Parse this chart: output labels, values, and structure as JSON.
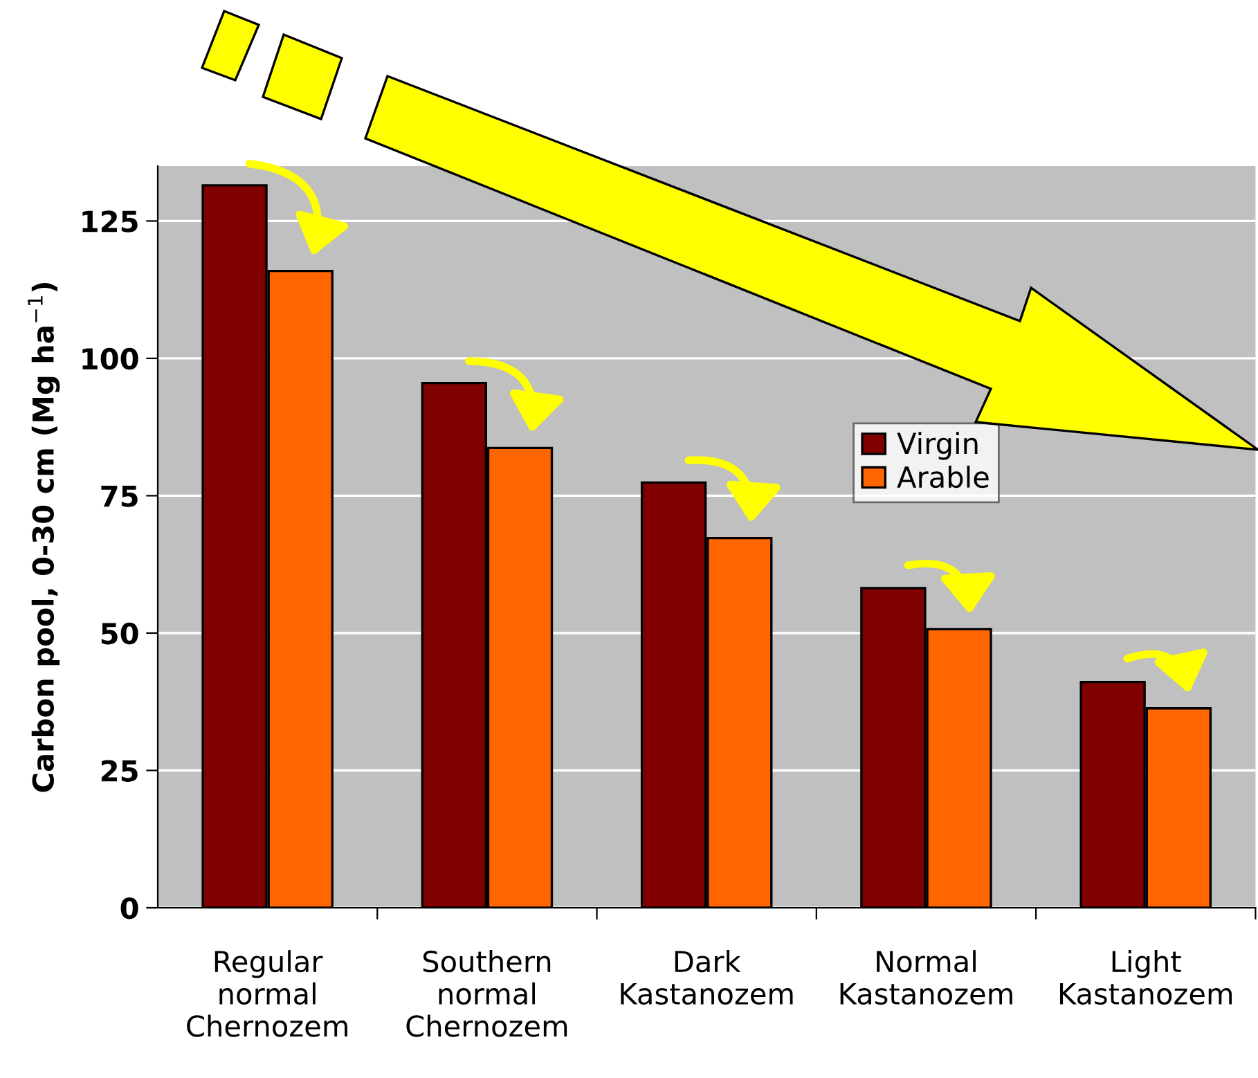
{
  "chart_data": {
    "type": "bar",
    "ylabel": "Carbon pool, 0-30 cm (Mg ha$^{−1}$)",
    "categories": [
      "Regular\nnormal\nChernozem",
      "Southern\nnormal\nChernozem",
      "Dark\nKastanozem",
      "Normal\nKastanozem",
      "Light\nKastanozem"
    ],
    "series": [
      {
        "name": "Virgin",
        "color": "#800000",
        "values": [
          131.5,
          95.5,
          77.4,
          58.2,
          41.1
        ]
      },
      {
        "name": "Arable",
        "color": "#ff6600",
        "values": [
          115.9,
          83.7,
          67.3,
          50.7,
          36.3
        ]
      }
    ],
    "ylim": [
      0,
      135
    ],
    "yticks": [
      0,
      25,
      50,
      75,
      100,
      125
    ],
    "grid": "y",
    "legend": "center right"
  }
}
